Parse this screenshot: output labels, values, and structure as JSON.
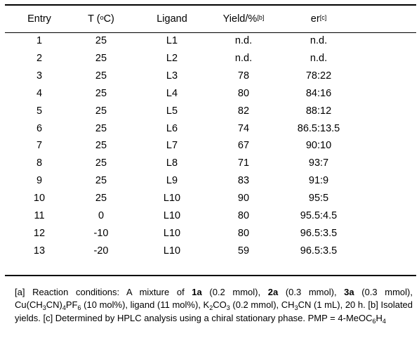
{
  "table": {
    "headers": {
      "entry": "Entry",
      "temp_prefix": "T (",
      "temp_sup": "o",
      "temp_suffix": "C)",
      "ligand": "Ligand",
      "yield_label": "Yield/%",
      "yield_note": "[b]",
      "er_label": "er",
      "er_note": "[c]"
    },
    "rows": [
      {
        "entry": "1",
        "temp": "25",
        "ligand": "L1",
        "yield": "n.d.",
        "er": "n.d.",
        "bold": false
      },
      {
        "entry": "2",
        "temp": "25",
        "ligand": "L2",
        "yield": "n.d.",
        "er": "n.d.",
        "bold": false
      },
      {
        "entry": "3",
        "temp": "25",
        "ligand": "L3",
        "yield": "78",
        "er": "78:22",
        "bold": false
      },
      {
        "entry": "4",
        "temp": "25",
        "ligand": "L4",
        "yield": "80",
        "er": "84:16",
        "bold": false
      },
      {
        "entry": "5",
        "temp": "25",
        "ligand": "L5",
        "yield": "82",
        "er": "88:12",
        "bold": false
      },
      {
        "entry": "6",
        "temp": "25",
        "ligand": "L6",
        "yield": "74",
        "er": "86.5:13.5",
        "bold": false
      },
      {
        "entry": "7",
        "temp": "25",
        "ligand": "L7",
        "yield": "67",
        "er": "90:10",
        "bold": false
      },
      {
        "entry": "8",
        "temp": "25",
        "ligand": "L8",
        "yield": "71",
        "er": "93:7",
        "bold": false
      },
      {
        "entry": "9",
        "temp": "25",
        "ligand": "L9",
        "yield": "83",
        "er": "91:9",
        "bold": false
      },
      {
        "entry": "10",
        "temp": "25",
        "ligand": "L10",
        "yield": "90",
        "er": "95:5",
        "bold": false
      },
      {
        "entry": "11",
        "temp": "0",
        "ligand": "L10",
        "yield": "80",
        "er": "95.5:4.5",
        "bold": false
      },
      {
        "entry": "12",
        "temp": "-10",
        "ligand": "L10",
        "yield": "80",
        "er": "96.5:3.5",
        "bold": true
      },
      {
        "entry": "13",
        "temp": "-20",
        "ligand": "L10",
        "yield": "59",
        "er": "96.5:3.5",
        "bold": false
      }
    ]
  },
  "footnote": {
    "t1": "[a] Reaction conditions: A mixture of ",
    "b1": "1a",
    "t2": " (0.2 mmol), ",
    "b2": "2a",
    "t3": " (0.3 mmol), ",
    "b3": "3a",
    "t4": " (0.3 mmol), Cu(CH",
    "s1": "3",
    "t5": "CN)",
    "s2": "4",
    "t6": "PF",
    "s3": "6",
    "t7": " (10 mol%), ligand (11 mol%), K",
    "s4": "2",
    "t8": "CO",
    "s5": "3",
    "t9": " (0.2 mmol), CH",
    "s6": "3",
    "t10": "CN (1 mL), 20 h. [b] Isolated yields. [c] Determined by HPLC analysis using a chiral stationary phase. PMP = 4-MeOC",
    "s7": "6",
    "t11": "H",
    "s8": "4"
  }
}
